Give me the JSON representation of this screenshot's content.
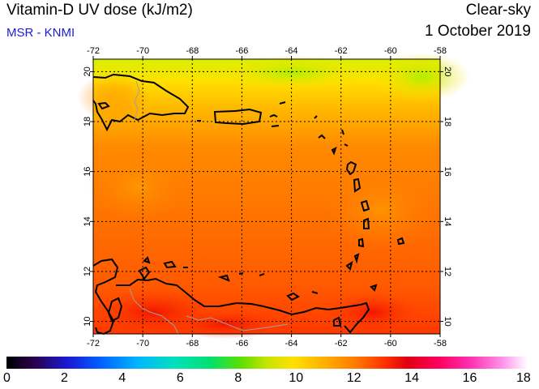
{
  "header": {
    "title": "Vitamin-D UV dose (kJ/m2)",
    "source": "MSR - KNMI",
    "condition": "Clear-sky",
    "date": "1 October 2019"
  },
  "map": {
    "lon_range": [
      -72,
      -58
    ],
    "lat_range": [
      9.5,
      20.5
    ],
    "lon_ticks": [
      "-72",
      "-70",
      "-68",
      "-66",
      "-64",
      "-62",
      "-60",
      "-58"
    ],
    "lat_ticks": [
      "10",
      "12",
      "14",
      "16",
      "18",
      "20"
    ],
    "grid": "dotted",
    "coastline_color": "#000000",
    "field_colors": [
      "#ffe000",
      "#ffb000",
      "#ff7a00",
      "#ff3a00"
    ]
  },
  "colorbar": {
    "min": 0,
    "max": 18,
    "labels": [
      "0",
      "2",
      "4",
      "6",
      "8",
      "10",
      "12",
      "14",
      "16",
      "18"
    ]
  }
}
